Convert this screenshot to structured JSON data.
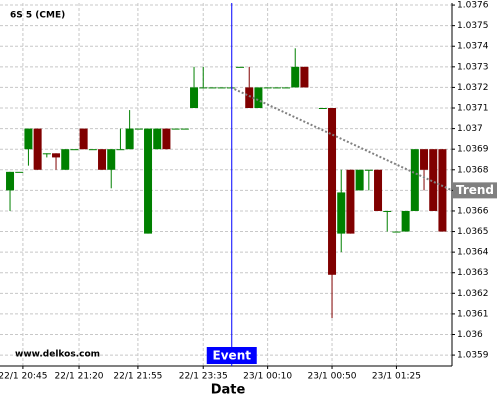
{
  "chart_data": {
    "type": "candlestick",
    "title": "6S 5 (CME)",
    "watermark": "www.delkos.com",
    "x_label": "Date",
    "up_color": "#008000",
    "down_color": "#800000",
    "grid": true,
    "x": [
      0,
      1,
      2,
      3,
      4,
      5,
      6,
      7,
      8,
      9,
      10,
      11,
      12,
      13,
      14,
      15,
      16,
      17,
      18,
      19,
      20,
      21,
      22,
      23,
      24,
      25,
      26,
      27,
      28,
      29,
      30,
      31,
      32,
      34,
      35,
      36,
      37,
      38,
      39,
      40,
      41,
      42,
      43,
      44,
      45,
      46,
      47
    ],
    "open": [
      1.0367,
      1.03679,
      1.0369,
      1.037,
      1.03688,
      1.03688,
      1.0368,
      1.0369,
      1.037,
      1.0369,
      1.0369,
      1.0368,
      1.0369,
      1.0369,
      1.037,
      1.03649,
      1.0369,
      1.037,
      1.037,
      1.037,
      1.0371,
      1.0372,
      1.0372,
      1.0372,
      1.0372,
      1.0373,
      1.0372,
      1.0371,
      1.0372,
      1.0372,
      1.0372,
      1.0372,
      1.0373,
      1.0371,
      1.0371,
      1.03649,
      1.0368,
      1.0367,
      1.0368,
      1.0368,
      1.0366,
      1.0365,
      1.0365,
      1.0366,
      1.0369,
      1.0369,
      1.0369
    ],
    "high": [
      1.03679,
      1.03679,
      1.037,
      1.037,
      1.03688,
      1.03688,
      1.0369,
      1.0369,
      1.037,
      1.0369,
      1.0369,
      1.0369,
      1.037,
      1.03709,
      1.037,
      1.037,
      1.037,
      1.037,
      1.037,
      1.037,
      1.0373,
      1.0373,
      1.0372,
      1.0372,
      1.0372,
      1.0373,
      1.0373,
      1.0372,
      1.0372,
      1.0372,
      1.0372,
      1.03739,
      1.0373,
      1.0371,
      1.0371,
      1.0368,
      1.0368,
      1.0368,
      1.0368,
      1.0368,
      1.0366,
      1.0365,
      1.0366,
      1.0369,
      1.0369,
      1.0369,
      1.0369
    ],
    "low": [
      1.0366,
      1.03679,
      1.03682,
      1.0368,
      1.03686,
      1.0368,
      1.0368,
      1.0369,
      1.0369,
      1.0369,
      1.0368,
      1.03671,
      1.0369,
      1.0369,
      1.037,
      1.03649,
      1.0369,
      1.0369,
      1.037,
      1.037,
      1.0371,
      1.0372,
      1.0372,
      1.0372,
      1.0372,
      1.0373,
      1.0371,
      1.0371,
      1.0372,
      1.0372,
      1.0372,
      1.0372,
      1.0372,
      1.0371,
      1.03608,
      1.0364,
      1.03649,
      1.0367,
      1.0367,
      1.0366,
      1.0365,
      1.0365,
      1.0365,
      1.0366,
      1.0367,
      1.0366,
      1.0365
    ],
    "close": [
      1.03679,
      1.03679,
      1.037,
      1.0368,
      1.03688,
      1.03686,
      1.0369,
      1.0369,
      1.0369,
      1.0369,
      1.0368,
      1.0369,
      1.0369,
      1.037,
      1.037,
      1.037,
      1.037,
      1.0369,
      1.037,
      1.037,
      1.0372,
      1.0372,
      1.0372,
      1.0372,
      1.0372,
      1.0373,
      1.0371,
      1.0372,
      1.0372,
      1.0372,
      1.0372,
      1.0373,
      1.0372,
      1.0371,
      1.03629,
      1.03669,
      1.03649,
      1.0368,
      1.0368,
      1.0366,
      1.0366,
      1.0365,
      1.0366,
      1.0369,
      1.0368,
      1.0366,
      1.0365
    ],
    "xlim": [
      -1.09,
      48.04
    ],
    "xticks": [
      {
        "value": 1.4,
        "label": "22/1 20:45"
      },
      {
        "value": 7.5,
        "label": "22/1 21:20"
      },
      {
        "value": 13.9,
        "label": "22/1 21:55"
      },
      {
        "value": 21,
        "label": "22/1 23:35"
      },
      {
        "value": 28,
        "label": "23/1 00:10"
      },
      {
        "value": 35,
        "label": "23/1 00:50"
      },
      {
        "value": 42,
        "label": "23/1 01:25"
      }
    ],
    "ylim": [
      1.035847,
      1.03761
    ],
    "yticks": [
      1.0359,
      1.036,
      1.0361,
      1.0362,
      1.0363,
      1.0364,
      1.0365,
      1.0366,
      1.0367,
      1.0368,
      1.0369,
      1.037,
      1.0371,
      1.0372,
      1.0373,
      1.0374,
      1.0375,
      1.0376
    ],
    "event": {
      "label": "Event",
      "x": 24.1,
      "color": "#0000ff"
    },
    "trend": {
      "label": "Trend",
      "x": [
        24,
        48.04
      ],
      "y": [
        1.0372,
        1.0367
      ],
      "color": "#808080"
    }
  }
}
